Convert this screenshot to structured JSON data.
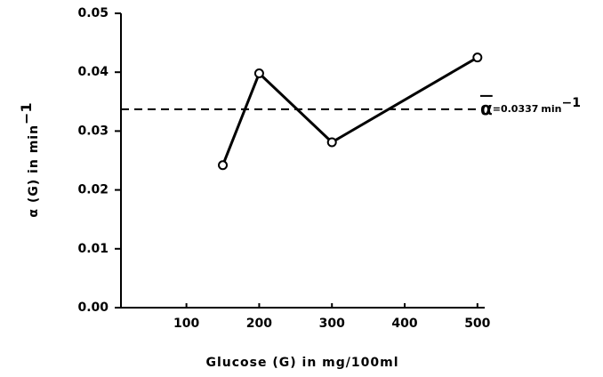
{
  "chart_data": {
    "type": "line",
    "x_label": "Glucose (G) in mg/100ml",
    "y_label": {
      "text": "α (G) in min",
      "exponent": "−1"
    },
    "x": [
      150,
      200,
      300,
      500
    ],
    "values": [
      0.0242,
      0.0398,
      0.0281,
      0.0425
    ],
    "color": "#000000",
    "xlim": [
      10,
      510
    ],
    "xticks": [
      100,
      200,
      300,
      400,
      500
    ],
    "ylim": [
      0,
      0.05
    ],
    "yticks": [
      {
        "value": 0,
        "label": "0.00"
      },
      {
        "value": 0.01,
        "label": "0.01"
      },
      {
        "value": 0.02,
        "label": "0.02"
      },
      {
        "value": 0.03,
        "label": "0.03"
      },
      {
        "value": 0.04,
        "label": "0.04"
      },
      {
        "value": 0.05,
        "label": "0.05"
      }
    ],
    "reference_line": {
      "value": 0.0337,
      "symbol": "α",
      "label": "=0.0337",
      "unit": "min",
      "exponent": "−1"
    }
  }
}
